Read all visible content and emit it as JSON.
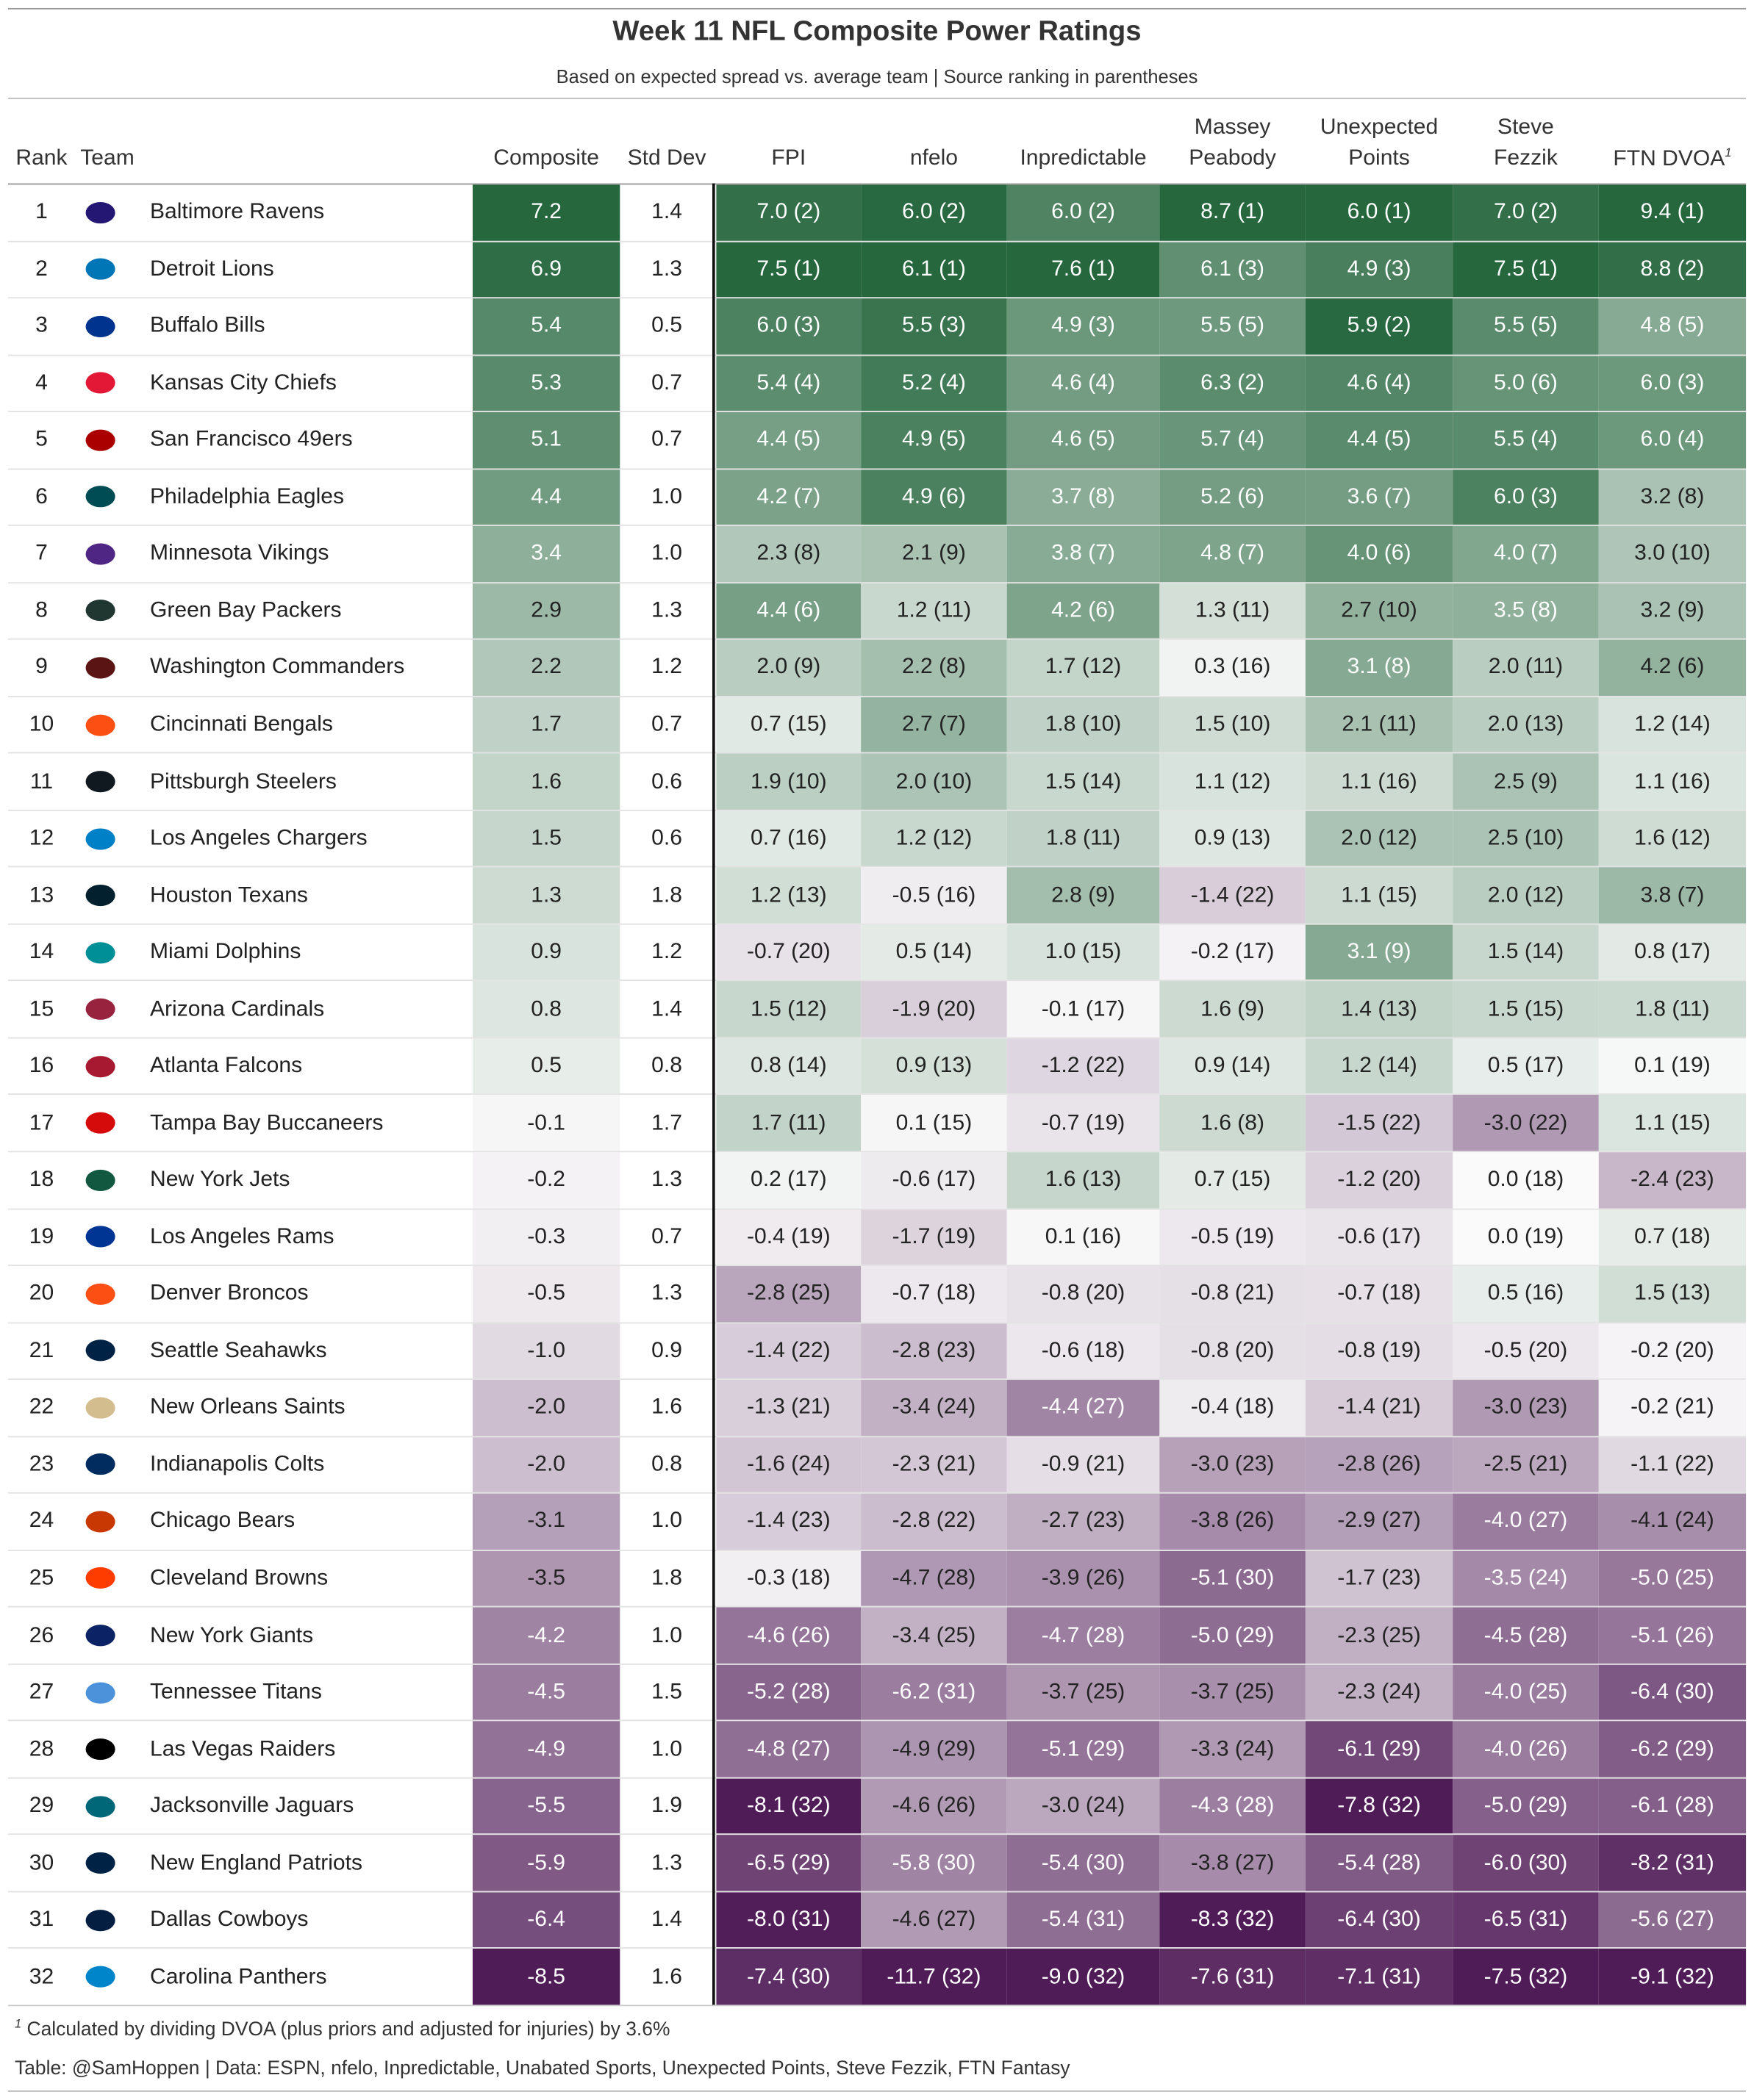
{
  "header": {
    "title": "Week 11 NFL Composite Power Ratings",
    "subtitle": "Based on expected spread vs. average team | Source ranking in parentheses"
  },
  "table": {
    "columns": [
      "Rank",
      "Team",
      "Composite",
      "Std Dev",
      "FPI",
      "nfelo",
      "Inpredictable",
      [
        "Massey",
        "Peabody"
      ],
      [
        "Unexpected",
        "Points"
      ],
      [
        "Steve",
        "Fezzik"
      ],
      "FTN DVOA"
    ],
    "rows": [
      [
        "1",
        "Baltimore Ravens",
        "7.2",
        "1.4",
        "7.0 (2)",
        "6.0 (2)",
        "6.0 (2)",
        "8.7 (1)",
        "6.0 (1)",
        "7.0 (2)",
        "9.4 (1)"
      ],
      [
        "2",
        "Detroit Lions",
        "6.9",
        "1.3",
        "7.5 (1)",
        "6.1 (1)",
        "7.6 (1)",
        "6.1 (3)",
        "4.9 (3)",
        "7.5 (1)",
        "8.8 (2)"
      ],
      [
        "3",
        "Buffalo Bills",
        "5.4",
        "0.5",
        "6.0 (3)",
        "5.5 (3)",
        "4.9 (3)",
        "5.5 (5)",
        "5.9 (2)",
        "5.5 (5)",
        "4.8 (5)"
      ],
      [
        "4",
        "Kansas City Chiefs",
        "5.3",
        "0.7",
        "5.4 (4)",
        "5.2 (4)",
        "4.6 (4)",
        "6.3 (2)",
        "4.6 (4)",
        "5.0 (6)",
        "6.0 (3)"
      ],
      [
        "5",
        "San Francisco 49ers",
        "5.1",
        "0.7",
        "4.4 (5)",
        "4.9 (5)",
        "4.6 (5)",
        "5.7 (4)",
        "4.4 (5)",
        "5.5 (4)",
        "6.0 (4)"
      ],
      [
        "6",
        "Philadelphia Eagles",
        "4.4",
        "1.0",
        "4.2 (7)",
        "4.9 (6)",
        "3.7 (8)",
        "5.2 (6)",
        "3.6 (7)",
        "6.0 (3)",
        "3.2 (8)"
      ],
      [
        "7",
        "Minnesota Vikings",
        "3.4",
        "1.0",
        "2.3 (8)",
        "2.1 (9)",
        "3.8 (7)",
        "4.8 (7)",
        "4.0 (6)",
        "4.0 (7)",
        "3.0 (10)"
      ],
      [
        "8",
        "Green Bay Packers",
        "2.9",
        "1.3",
        "4.4 (6)",
        "1.2 (11)",
        "4.2 (6)",
        "1.3 (11)",
        "2.7 (10)",
        "3.5 (8)",
        "3.2 (9)"
      ],
      [
        "9",
        "Washington Commanders",
        "2.2",
        "1.2",
        "2.0 (9)",
        "2.2 (8)",
        "1.7 (12)",
        "0.3 (16)",
        "3.1 (8)",
        "2.0 (11)",
        "4.2 (6)"
      ],
      [
        "10",
        "Cincinnati Bengals",
        "1.7",
        "0.7",
        "0.7 (15)",
        "2.7 (7)",
        "1.8 (10)",
        "1.5 (10)",
        "2.1 (11)",
        "2.0 (13)",
        "1.2 (14)"
      ],
      [
        "11",
        "Pittsburgh Steelers",
        "1.6",
        "0.6",
        "1.9 (10)",
        "2.0 (10)",
        "1.5 (14)",
        "1.1 (12)",
        "1.1 (16)",
        "2.5 (9)",
        "1.1 (16)"
      ],
      [
        "12",
        "Los Angeles Chargers",
        "1.5",
        "0.6",
        "0.7 (16)",
        "1.2 (12)",
        "1.8 (11)",
        "0.9 (13)",
        "2.0 (12)",
        "2.5 (10)",
        "1.6 (12)"
      ],
      [
        "13",
        "Houston Texans",
        "1.3",
        "1.8",
        "1.2 (13)",
        "-0.5 (16)",
        "2.8 (9)",
        "-1.4 (22)",
        "1.1 (15)",
        "2.0 (12)",
        "3.8 (7)"
      ],
      [
        "14",
        "Miami Dolphins",
        "0.9",
        "1.2",
        "-0.7 (20)",
        "0.5 (14)",
        "1.0 (15)",
        "-0.2 (17)",
        "3.1 (9)",
        "1.5 (14)",
        "0.8 (17)"
      ],
      [
        "15",
        "Arizona Cardinals",
        "0.8",
        "1.4",
        "1.5 (12)",
        "-1.9 (20)",
        "-0.1 (17)",
        "1.6 (9)",
        "1.4 (13)",
        "1.5 (15)",
        "1.8 (11)"
      ],
      [
        "16",
        "Atlanta Falcons",
        "0.5",
        "0.8",
        "0.8 (14)",
        "0.9 (13)",
        "-1.2 (22)",
        "0.9 (14)",
        "1.2 (14)",
        "0.5 (17)",
        "0.1 (19)"
      ],
      [
        "17",
        "Tampa Bay Buccaneers",
        "-0.1",
        "1.7",
        "1.7 (11)",
        "0.1 (15)",
        "-0.7 (19)",
        "1.6 (8)",
        "-1.5 (22)",
        "-3.0 (22)",
        "1.1 (15)"
      ],
      [
        "18",
        "New York Jets",
        "-0.2",
        "1.3",
        "0.2 (17)",
        "-0.6 (17)",
        "1.6 (13)",
        "0.7 (15)",
        "-1.2 (20)",
        "0.0 (18)",
        "-2.4 (23)"
      ],
      [
        "19",
        "Los Angeles Rams",
        "-0.3",
        "0.7",
        "-0.4 (19)",
        "-1.7 (19)",
        "0.1 (16)",
        "-0.5 (19)",
        "-0.6 (17)",
        "0.0 (19)",
        "0.7 (18)"
      ],
      [
        "20",
        "Denver Broncos",
        "-0.5",
        "1.3",
        "-2.8 (25)",
        "-0.7 (18)",
        "-0.8 (20)",
        "-0.8 (21)",
        "-0.7 (18)",
        "0.5 (16)",
        "1.5 (13)"
      ],
      [
        "21",
        "Seattle Seahawks",
        "-1.0",
        "0.9",
        "-1.4 (22)",
        "-2.8 (23)",
        "-0.6 (18)",
        "-0.8 (20)",
        "-0.8 (19)",
        "-0.5 (20)",
        "-0.2 (20)"
      ],
      [
        "22",
        "New Orleans Saints",
        "-2.0",
        "1.6",
        "-1.3 (21)",
        "-3.4 (24)",
        "-4.4 (27)",
        "-0.4 (18)",
        "-1.4 (21)",
        "-3.0 (23)",
        "-0.2 (21)"
      ],
      [
        "23",
        "Indianapolis Colts",
        "-2.0",
        "0.8",
        "-1.6 (24)",
        "-2.3 (21)",
        "-0.9 (21)",
        "-3.0 (23)",
        "-2.8 (26)",
        "-2.5 (21)",
        "-1.1 (22)"
      ],
      [
        "24",
        "Chicago Bears",
        "-3.1",
        "1.0",
        "-1.4 (23)",
        "-2.8 (22)",
        "-2.7 (23)",
        "-3.8 (26)",
        "-2.9 (27)",
        "-4.0 (27)",
        "-4.1 (24)"
      ],
      [
        "25",
        "Cleveland Browns",
        "-3.5",
        "1.8",
        "-0.3 (18)",
        "-4.7 (28)",
        "-3.9 (26)",
        "-5.1 (30)",
        "-1.7 (23)",
        "-3.5 (24)",
        "-5.0 (25)"
      ],
      [
        "26",
        "New York Giants",
        "-4.2",
        "1.0",
        "-4.6 (26)",
        "-3.4 (25)",
        "-4.7 (28)",
        "-5.0 (29)",
        "-2.3 (25)",
        "-4.5 (28)",
        "-5.1 (26)"
      ],
      [
        "27",
        "Tennessee Titans",
        "-4.5",
        "1.5",
        "-5.2 (28)",
        "-6.2 (31)",
        "-3.7 (25)",
        "-3.7 (25)",
        "-2.3 (24)",
        "-4.0 (25)",
        "-6.4 (30)"
      ],
      [
        "28",
        "Las Vegas Raiders",
        "-4.9",
        "1.0",
        "-4.8 (27)",
        "-4.9 (29)",
        "-5.1 (29)",
        "-3.3 (24)",
        "-6.1 (29)",
        "-4.0 (26)",
        "-6.2 (29)"
      ],
      [
        "29",
        "Jacksonville Jaguars",
        "-5.5",
        "1.9",
        "-8.1 (32)",
        "-4.6 (26)",
        "-3.0 (24)",
        "-4.3 (28)",
        "-7.8 (32)",
        "-5.0 (29)",
        "-6.1 (28)"
      ],
      [
        "30",
        "New England Patriots",
        "-5.9",
        "1.3",
        "-6.5 (29)",
        "-5.8 (30)",
        "-5.4 (30)",
        "-3.8 (27)",
        "-5.4 (28)",
        "-6.0 (30)",
        "-8.2 (31)"
      ],
      [
        "31",
        "Dallas Cowboys",
        "-6.4",
        "1.4",
        "-8.0 (31)",
        "-4.6 (27)",
        "-5.4 (31)",
        "-8.3 (32)",
        "-6.4 (30)",
        "-6.5 (31)",
        "-5.6 (27)"
      ],
      [
        "32",
        "Carolina Panthers",
        "-8.5",
        "1.6",
        "-7.4 (30)",
        "-11.7 (32)",
        "-9.0 (32)",
        "-7.6 (31)",
        "-7.1 (31)",
        "-7.5 (32)",
        "-9.1 (32)"
      ]
    ]
  },
  "footnote": {
    "marker": "1",
    "text": "Calculated by dividing DVOA (plus priors and adjusted for injuries) by 3.6%"
  },
  "source": "Table: @SamHoppen | Data: ESPN, nfelo, Inpredictable, Unabated Sports, Unexpected Points, Steve Fezzik, FTN Fantasy"
}
